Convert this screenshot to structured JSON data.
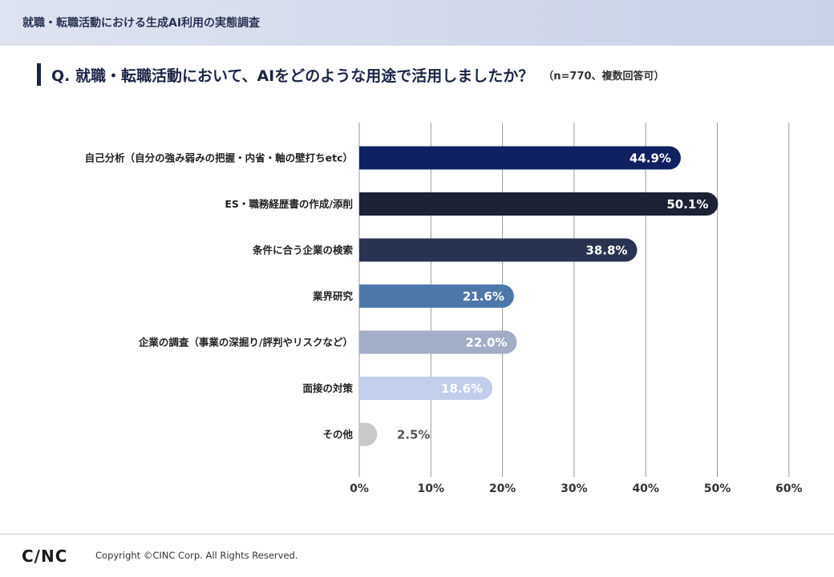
{
  "header": {
    "title": "就職・転職活動における生成AI利用の実態調査"
  },
  "question": {
    "text": "Q. 就職・転職活動において、AIをどのような用途で活用しましたか？",
    "note": "（n=770、複数回答可）"
  },
  "chart_data": {
    "type": "bar",
    "orientation": "horizontal",
    "categories": [
      "自己分析（自分の強み弱みの把握・内省・軸の壁打ちetc）",
      "ES・職務経歴書の作成/添削",
      "条件に合う企業の検索",
      "業界研究",
      "企業の調査（事業の深掘り/評判やリスクなど）",
      "面接の対策",
      "その他"
    ],
    "values": [
      44.9,
      50.1,
      38.8,
      21.6,
      22.0,
      18.6,
      2.5
    ],
    "value_labels": [
      "44.9%",
      "50.1%",
      "38.8%",
      "21.6%",
      "22.0%",
      "18.6%",
      "2.5%"
    ],
    "bar_colors": [
      "#0f2160",
      "#1c2233",
      "#2a3450",
      "#4d79aa",
      "#a3adc6",
      "#c3cdec",
      "#c9c9c9"
    ],
    "label_colors": [
      "#ffffff",
      "#ffffff",
      "#ffffff",
      "#ffffff",
      "#ffffff",
      "#ffffff",
      "#555555"
    ],
    "xlim": [
      0,
      60
    ],
    "xticks": [
      0,
      10,
      20,
      30,
      40,
      50,
      60
    ],
    "xtick_labels": [
      "0%",
      "10%",
      "20%",
      "30%",
      "40%",
      "50%",
      "60%"
    ],
    "grid": true
  },
  "footer": {
    "logo": "C/NC",
    "copyright": "Copyright ©CINC Corp. All Rights Reserved."
  }
}
